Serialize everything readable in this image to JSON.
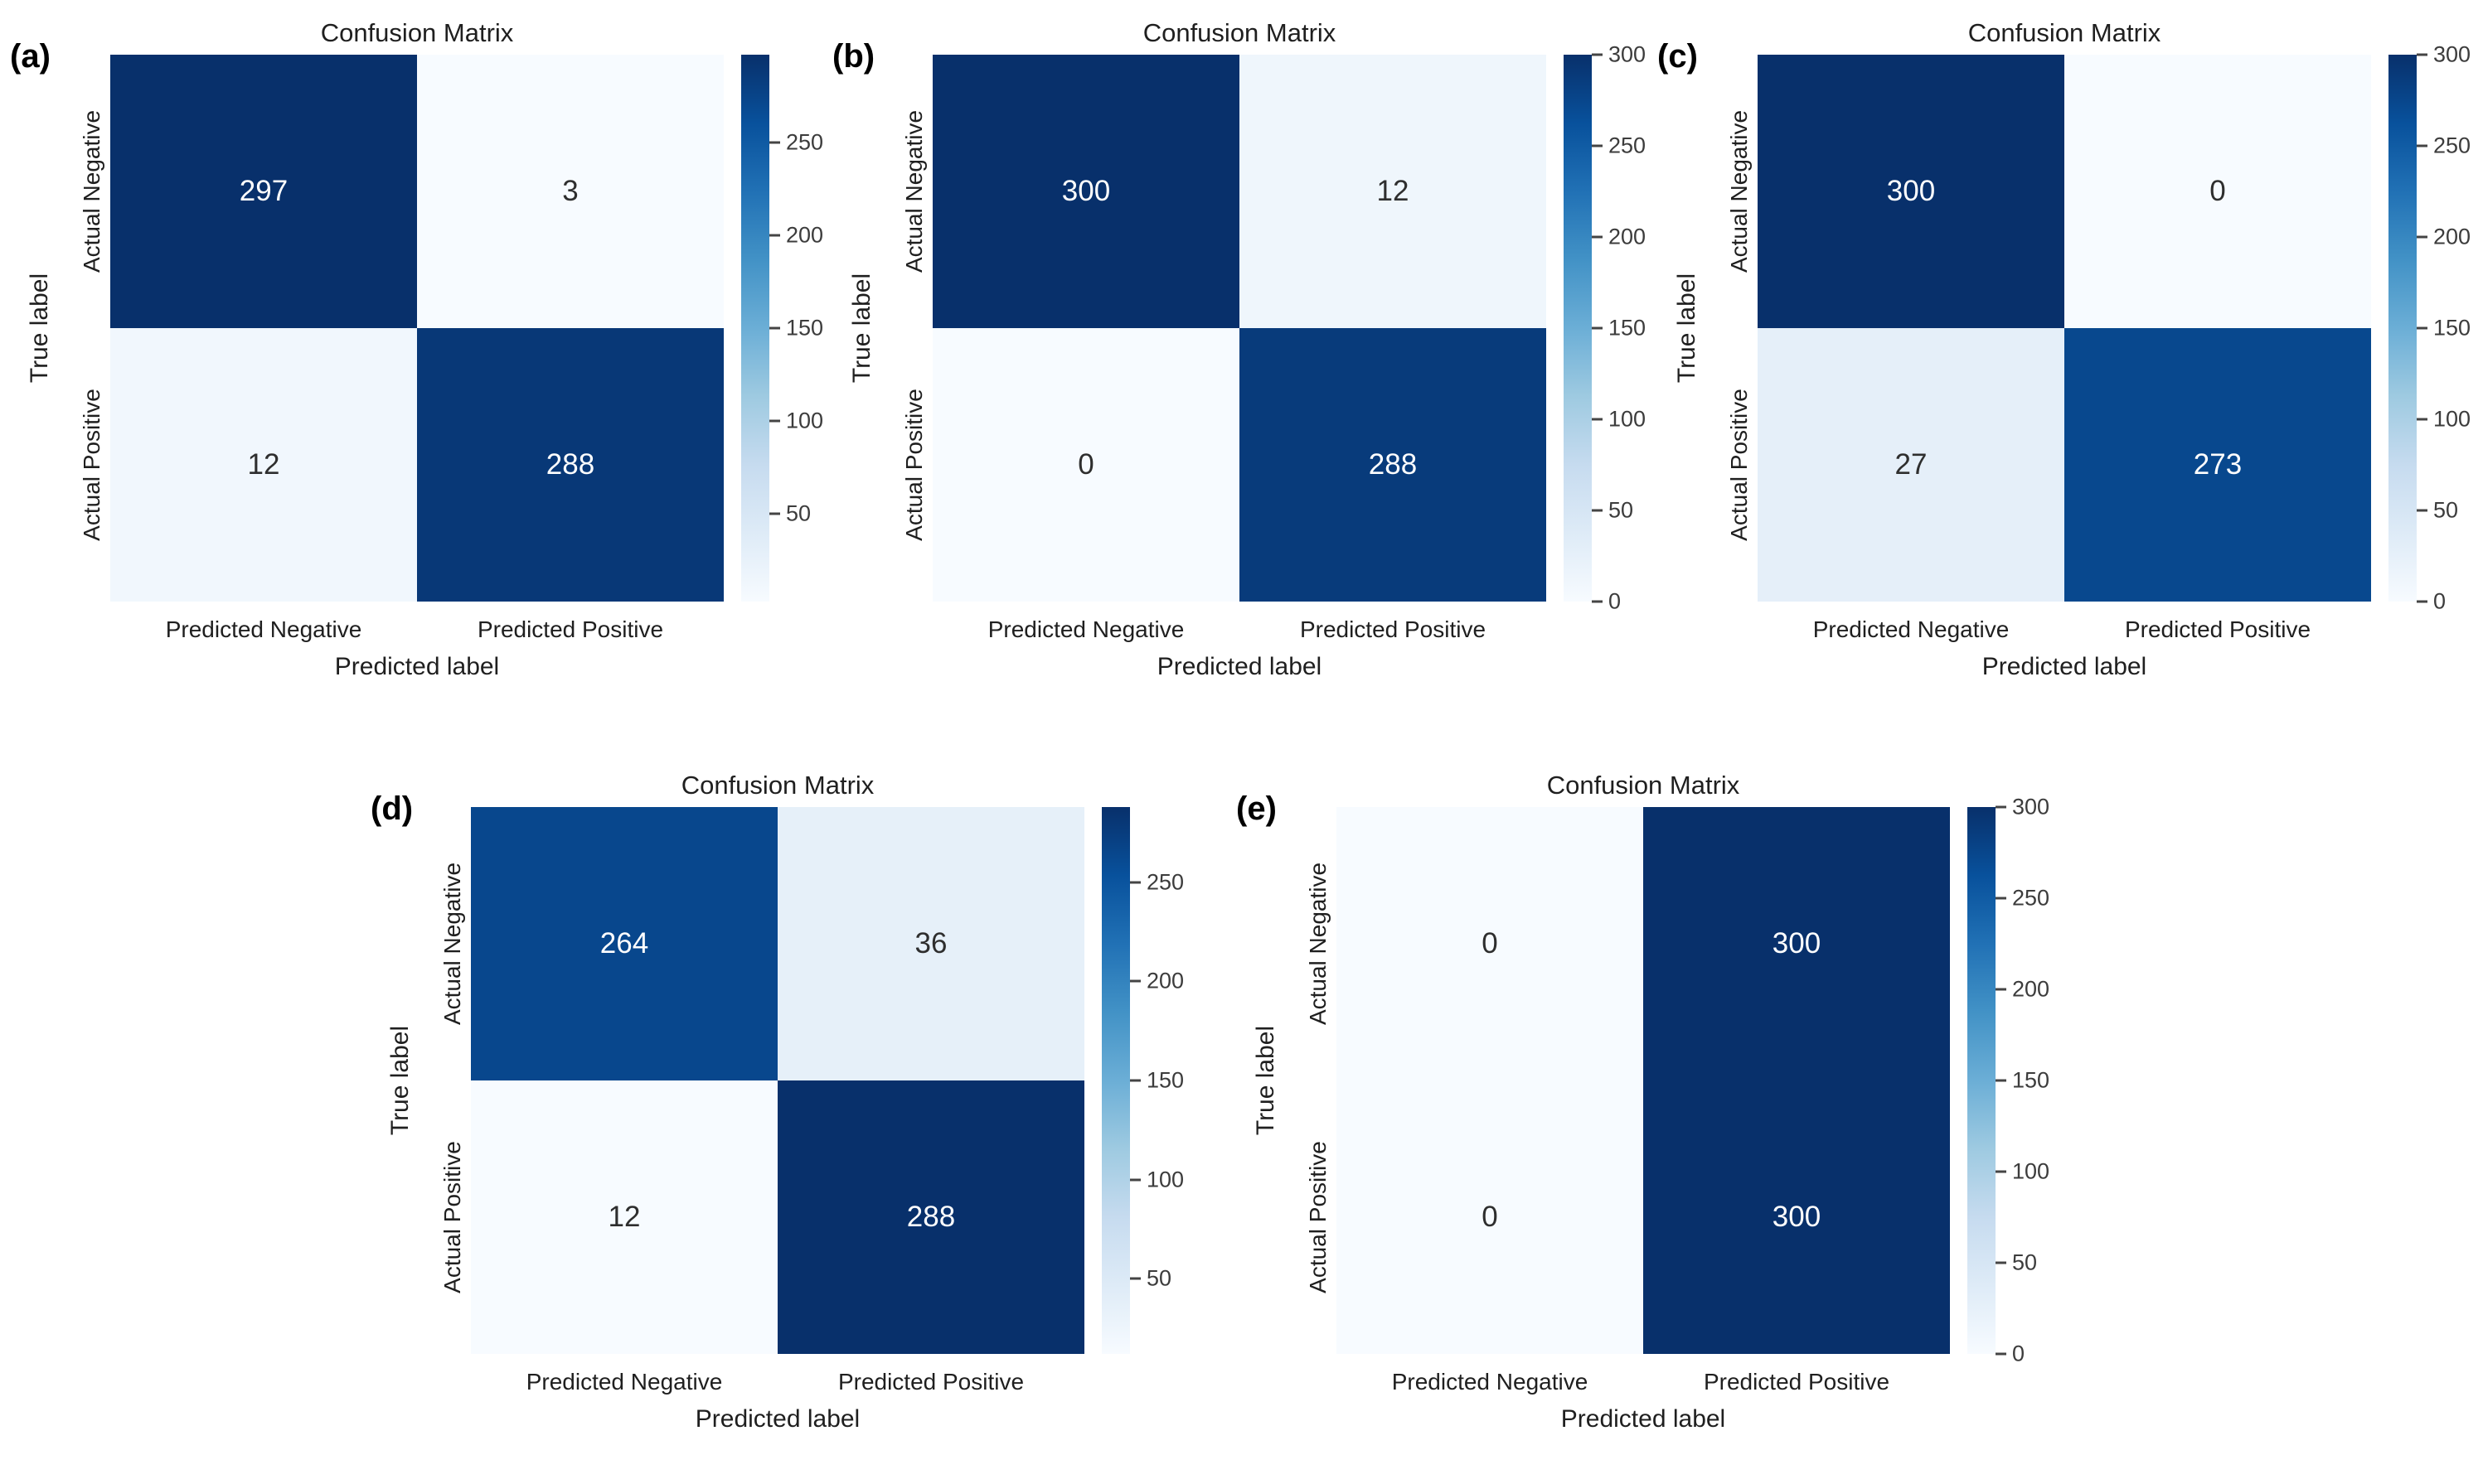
{
  "style": {
    "background": "#ffffff",
    "colormap_stops": [
      "#f7fbff",
      "#deebf7",
      "#c6dbef",
      "#9ecae1",
      "#6baed6",
      "#4292c6",
      "#2171b5",
      "#08519c",
      "#08306b"
    ],
    "annotation_color_light_cells": "#2e2e2e",
    "annotation_color_dark_cells": "#ffffff",
    "label_color": "#1f1f1f",
    "tick_color": "#3c3c3c"
  },
  "chart_data": [
    {
      "type": "heatmap",
      "panel_label": "(a)",
      "title": "Confusion Matrix",
      "xlabel": "Predicted label",
      "ylabel": "True label",
      "x_categories": [
        "Predicted Negative",
        "Predicted Positive"
      ],
      "y_categories": [
        "Actual Negative",
        "Actual Positive"
      ],
      "matrix": [
        [
          297,
          3
        ],
        [
          12,
          288
        ]
      ],
      "vmin": 3,
      "vmax": 297,
      "colorbar_ticks": [
        250,
        200,
        150,
        100,
        50
      ],
      "colormap": "Blues",
      "colorbar_position": "right"
    },
    {
      "type": "heatmap",
      "panel_label": "(b)",
      "title": "Confusion Matrix",
      "xlabel": "Predicted label",
      "ylabel": "True label",
      "x_categories": [
        "Predicted Negative",
        "Predicted Positive"
      ],
      "y_categories": [
        "Actual Negative",
        "Actual Positive"
      ],
      "matrix": [
        [
          300,
          12
        ],
        [
          0,
          288
        ]
      ],
      "vmin": 0,
      "vmax": 300,
      "colorbar_ticks": [
        300,
        250,
        200,
        150,
        100,
        50,
        0
      ],
      "colormap": "Blues",
      "colorbar_position": "right"
    },
    {
      "type": "heatmap",
      "panel_label": "(c)",
      "title": "Confusion Matrix",
      "xlabel": "Predicted label",
      "ylabel": "True label",
      "x_categories": [
        "Predicted Negative",
        "Predicted Positive"
      ],
      "y_categories": [
        "Actual Negative",
        "Actual Positive"
      ],
      "matrix": [
        [
          300,
          0
        ],
        [
          27,
          273
        ]
      ],
      "vmin": 0,
      "vmax": 300,
      "colorbar_ticks": [
        300,
        250,
        200,
        150,
        100,
        50,
        0
      ],
      "colormap": "Blues",
      "colorbar_position": "right"
    },
    {
      "type": "heatmap",
      "panel_label": "(d)",
      "title": "Confusion Matrix",
      "xlabel": "Predicted label",
      "ylabel": "True label",
      "x_categories": [
        "Predicted Negative",
        "Predicted Positive"
      ],
      "y_categories": [
        "Actual Negative",
        "Actual Positive"
      ],
      "matrix": [
        [
          264,
          36
        ],
        [
          12,
          288
        ]
      ],
      "vmin": 12,
      "vmax": 288,
      "colorbar_ticks": [
        250,
        200,
        150,
        100,
        50
      ],
      "colormap": "Blues",
      "colorbar_position": "right"
    },
    {
      "type": "heatmap",
      "panel_label": "(e)",
      "title": "Confusion Matrix",
      "xlabel": "Predicted label",
      "ylabel": "True label",
      "x_categories": [
        "Predicted Negative",
        "Predicted Positive"
      ],
      "y_categories": [
        "Actual Negative",
        "Actual Positive"
      ],
      "matrix": [
        [
          0,
          300
        ],
        [
          0,
          300
        ]
      ],
      "vmin": 0,
      "vmax": 300,
      "colorbar_ticks": [
        300,
        250,
        200,
        150,
        100,
        50,
        0
      ],
      "colormap": "Blues",
      "colorbar_position": "right"
    }
  ]
}
